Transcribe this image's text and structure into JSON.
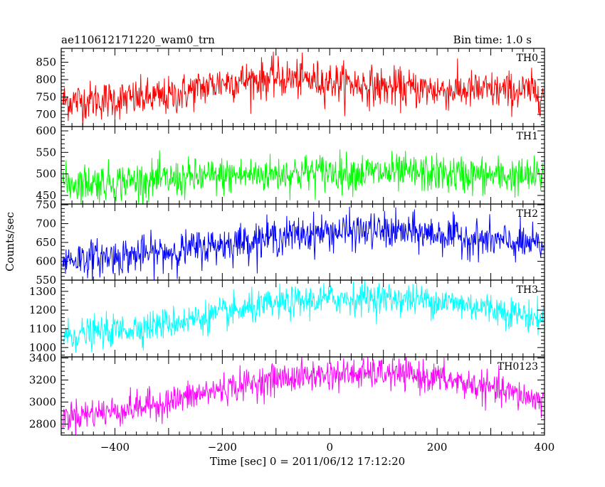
{
  "header": {
    "left_title": "ae110612171220_wam0_trn",
    "right_title": "Bin time: 1.0 s"
  },
  "axes": {
    "ylabel": "Counts/sec",
    "xlabel": "Time [sec] 0 = 2011/06/12 17:12:20"
  },
  "chart_data": {
    "type": "line",
    "x_range": [
      -500,
      400
    ],
    "x_sampling_sec": 1.0,
    "x_ticks": [
      -400,
      -200,
      0,
      200,
      400
    ],
    "x_tick_labels": [
      "−400",
      "−200",
      "0",
      "200",
      "400"
    ],
    "panels": [
      {
        "name": "TH0",
        "color": "#ff0000",
        "ylim": [
          665,
          890
        ],
        "y_ticks": [
          700,
          750,
          800,
          850
        ],
        "y_tick_labels": [
          "700",
          "750",
          "800",
          "850"
        ],
        "trend_x": [
          -500,
          -400,
          -300,
          -250,
          -200,
          -100,
          0,
          100,
          200,
          300,
          400
        ],
        "trend_y": [
          738,
          742,
          750,
          772,
          792,
          805,
          795,
          778,
          770,
          768,
          765
        ],
        "noise_sd": 28
      },
      {
        "name": "TH1",
        "color": "#00ff00",
        "ylim": [
          430,
          610
        ],
        "y_ticks": [
          450,
          500,
          550,
          600
        ],
        "y_tick_labels": [
          "450",
          "500",
          "550",
          "600"
        ],
        "trend_x": [
          -500,
          -400,
          -300,
          -200,
          -100,
          0,
          100,
          200,
          300,
          400
        ],
        "trend_y": [
          478,
          482,
          486,
          495,
          500,
          505,
          502,
          500,
          496,
          492
        ],
        "noise_sd": 22
      },
      {
        "name": "TH2",
        "color": "#0000ff",
        "ylim": [
          550,
          752
        ],
        "y_ticks": [
          550,
          600,
          650,
          700,
          750
        ],
        "y_tick_labels": [
          "550",
          "600",
          "650",
          "700",
          "750"
        ],
        "trend_x": [
          -500,
          -400,
          -300,
          -200,
          -100,
          0,
          100,
          200,
          300,
          400
        ],
        "trend_y": [
          605,
          612,
          625,
          645,
          665,
          678,
          680,
          672,
          655,
          640
        ],
        "noise_sd": 24
      },
      {
        "name": "TH3",
        "color": "#00ffff",
        "ylim": [
          950,
          1360
        ],
        "y_ticks": [
          1000,
          1100,
          1200,
          1300
        ],
        "y_tick_labels": [
          "1000",
          "1100",
          "1200",
          "1300"
        ],
        "trend_x": [
          -500,
          -400,
          -300,
          -200,
          -100,
          0,
          100,
          200,
          300,
          400
        ],
        "trend_y": [
          1060,
          1090,
          1130,
          1180,
          1230,
          1260,
          1265,
          1250,
          1210,
          1150
        ],
        "noise_sd": 42
      },
      {
        "name": "TH0123",
        "color": "#ff00ff",
        "ylim": [
          2700,
          3410
        ],
        "y_ticks": [
          2800,
          3000,
          3200,
          3400
        ],
        "y_tick_labels": [
          "2800",
          "3000",
          "3200",
          "3400"
        ],
        "trend_x": [
          -500,
          -400,
          -300,
          -200,
          -100,
          0,
          100,
          200,
          300,
          400
        ],
        "trend_y": [
          2870,
          2920,
          3000,
          3120,
          3210,
          3250,
          3260,
          3220,
          3120,
          3010
        ],
        "noise_sd": 70
      }
    ]
  }
}
